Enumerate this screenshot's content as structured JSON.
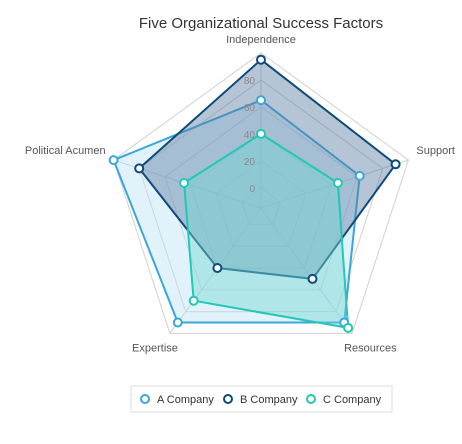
{
  "chart_data": {
    "type": "radar",
    "title": "Five Organizational Success Factors",
    "axes": [
      "Independence",
      "Support",
      "Resources",
      "Expertise",
      "Political Acumen"
    ],
    "radial_ticks": [
      0,
      20,
      40,
      60,
      80
    ],
    "rmin": -15,
    "rmax": 100,
    "grid": true,
    "legend_position": "bottom",
    "series": [
      {
        "name": "A Company",
        "values": [
          65,
          62,
          90,
          90,
          100
        ],
        "color": "#3aa7d8",
        "fill": "#bfe3f4"
      },
      {
        "name": "B Company",
        "values": [
          95,
          90,
          50,
          40,
          80
        ],
        "color": "#0d4a7a",
        "fill": "#5b7fa3"
      },
      {
        "name": "C Company",
        "values": [
          40,
          45,
          95,
          70,
          45
        ],
        "color": "#22c7b8",
        "fill": "#74d8d2"
      }
    ]
  }
}
